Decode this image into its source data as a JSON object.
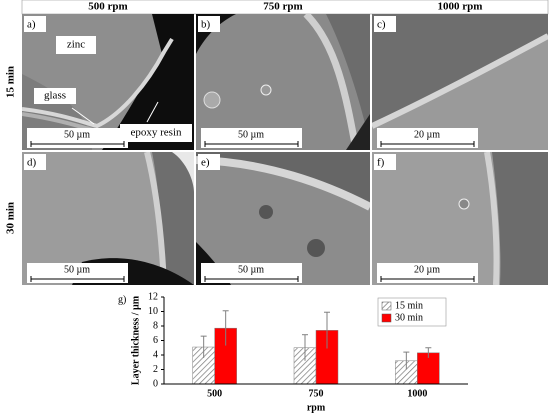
{
  "column_headers": [
    "500 rpm",
    "750 rpm",
    "1000 rpm"
  ],
  "row_headers": [
    "15 min",
    "30 min"
  ],
  "panels": [
    {
      "label": "a)",
      "annotations": [
        "zinc",
        "glass",
        "epoxy resin"
      ],
      "scale_bar": "50 µm"
    },
    {
      "label": "b)",
      "scale_bar": "50 µm"
    },
    {
      "label": "c)",
      "scale_bar": "20 µm"
    },
    {
      "label": "d)",
      "scale_bar": "50 µm"
    },
    {
      "label": "e)",
      "scale_bar": "50 µm"
    },
    {
      "label": "f)",
      "scale_bar": "20 µm"
    }
  ],
  "chart_data": {
    "type": "bar",
    "panel_label": "g)",
    "y_label": "Layer thickness / µm",
    "x_label": "rpm",
    "categories": [
      "500",
      "750",
      "1000"
    ],
    "series": [
      {
        "name": "15 min",
        "color": "#bfbfbf",
        "pattern": "hatch",
        "values": [
          5.1,
          5.0,
          3.2
        ],
        "errors": [
          1.5,
          1.8,
          1.2
        ]
      },
      {
        "name": "30 min",
        "color": "#ff0000",
        "values": [
          7.7,
          7.4,
          4.3
        ],
        "errors": [
          2.4,
          2.5,
          0.7
        ]
      }
    ],
    "ylim": [
      0,
      12
    ],
    "yticks": [
      0,
      2,
      4,
      6,
      8,
      10,
      12
    ],
    "legend": "upper right"
  }
}
